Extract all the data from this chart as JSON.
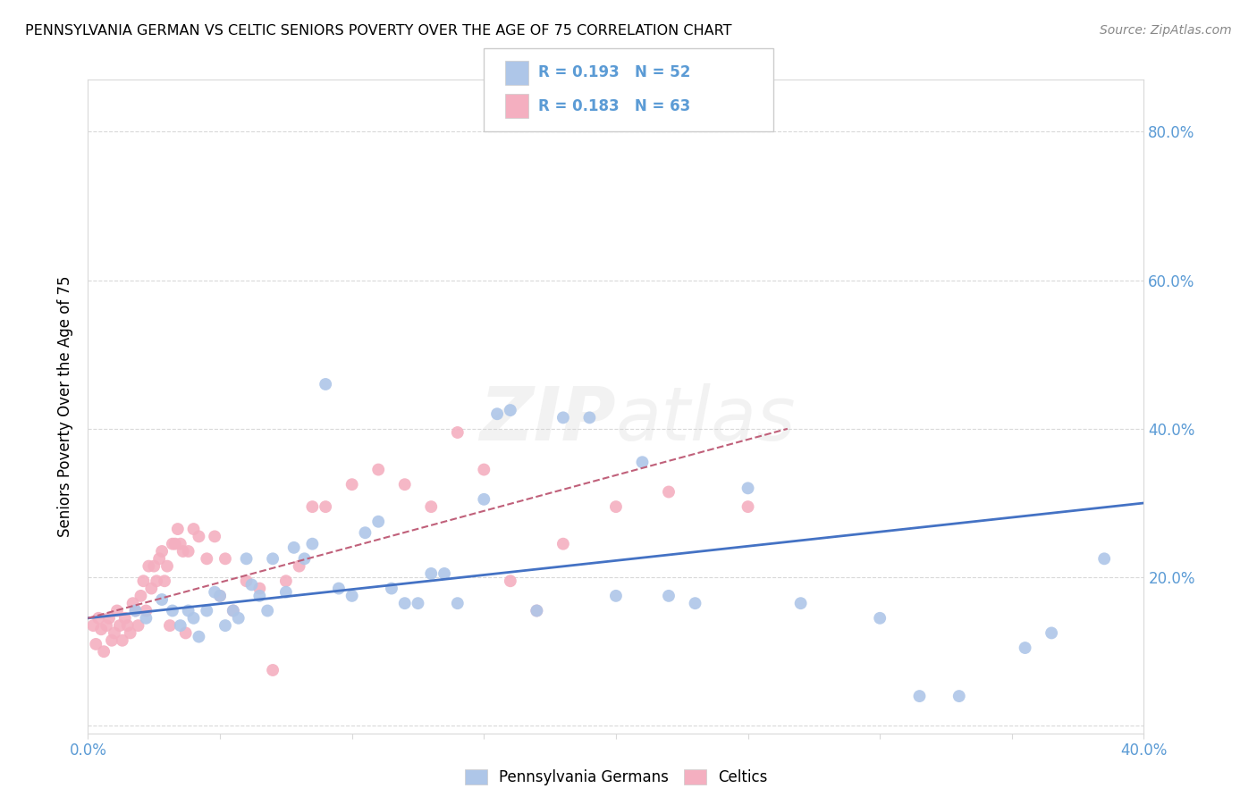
{
  "title": "PENNSYLVANIA GERMAN VS CELTIC SENIORS POVERTY OVER THE AGE OF 75 CORRELATION CHART",
  "source": "Source: ZipAtlas.com",
  "ylabel": "Seniors Poverty Over the Age of 75",
  "xlim": [
    0.0,
    0.4
  ],
  "ylim": [
    -0.01,
    0.87
  ],
  "blue_color": "#aec6e8",
  "pink_color": "#f4afc0",
  "line_blue": "#4472c4",
  "line_pink": "#c0607a",
  "tick_color": "#5b9bd5",
  "grid_color": "#d9d9d9",
  "axis_color": "#d9d9d9",
  "bg_color": "#ffffff",
  "label1": "Pennsylvania Germans",
  "label2": "Celtics",
  "blue_points_x": [
    0.018,
    0.022,
    0.028,
    0.032,
    0.035,
    0.038,
    0.04,
    0.042,
    0.045,
    0.048,
    0.05,
    0.052,
    0.055,
    0.057,
    0.06,
    0.062,
    0.065,
    0.068,
    0.07,
    0.075,
    0.078,
    0.082,
    0.085,
    0.09,
    0.095,
    0.1,
    0.105,
    0.11,
    0.115,
    0.12,
    0.125,
    0.13,
    0.135,
    0.14,
    0.15,
    0.155,
    0.16,
    0.17,
    0.18,
    0.19,
    0.2,
    0.21,
    0.22,
    0.23,
    0.25,
    0.27,
    0.3,
    0.315,
    0.33,
    0.355,
    0.365,
    0.385
  ],
  "blue_points_y": [
    0.155,
    0.145,
    0.17,
    0.155,
    0.135,
    0.155,
    0.145,
    0.12,
    0.155,
    0.18,
    0.175,
    0.135,
    0.155,
    0.145,
    0.225,
    0.19,
    0.175,
    0.155,
    0.225,
    0.18,
    0.24,
    0.225,
    0.245,
    0.46,
    0.185,
    0.175,
    0.26,
    0.275,
    0.185,
    0.165,
    0.165,
    0.205,
    0.205,
    0.165,
    0.305,
    0.42,
    0.425,
    0.155,
    0.415,
    0.415,
    0.175,
    0.355,
    0.175,
    0.165,
    0.32,
    0.165,
    0.145,
    0.04,
    0.04,
    0.105,
    0.125,
    0.225
  ],
  "pink_points_x": [
    0.002,
    0.003,
    0.004,
    0.005,
    0.006,
    0.007,
    0.008,
    0.009,
    0.01,
    0.011,
    0.012,
    0.013,
    0.014,
    0.015,
    0.016,
    0.017,
    0.018,
    0.019,
    0.02,
    0.021,
    0.022,
    0.023,
    0.024,
    0.025,
    0.026,
    0.027,
    0.028,
    0.029,
    0.03,
    0.031,
    0.032,
    0.033,
    0.034,
    0.035,
    0.036,
    0.037,
    0.038,
    0.04,
    0.042,
    0.045,
    0.048,
    0.05,
    0.052,
    0.055,
    0.06,
    0.065,
    0.07,
    0.075,
    0.08,
    0.085,
    0.09,
    0.1,
    0.11,
    0.12,
    0.13,
    0.14,
    0.15,
    0.16,
    0.17,
    0.18,
    0.2,
    0.22,
    0.25
  ],
  "pink_points_y": [
    0.135,
    0.11,
    0.145,
    0.13,
    0.1,
    0.135,
    0.145,
    0.115,
    0.125,
    0.155,
    0.135,
    0.115,
    0.145,
    0.135,
    0.125,
    0.165,
    0.155,
    0.135,
    0.175,
    0.195,
    0.155,
    0.215,
    0.185,
    0.215,
    0.195,
    0.225,
    0.235,
    0.195,
    0.215,
    0.135,
    0.245,
    0.245,
    0.265,
    0.245,
    0.235,
    0.125,
    0.235,
    0.265,
    0.255,
    0.225,
    0.255,
    0.175,
    0.225,
    0.155,
    0.195,
    0.185,
    0.075,
    0.195,
    0.215,
    0.295,
    0.295,
    0.325,
    0.345,
    0.325,
    0.295,
    0.395,
    0.345,
    0.195,
    0.155,
    0.245,
    0.295,
    0.315,
    0.295
  ],
  "blue_trend_x": [
    0.0,
    0.4
  ],
  "blue_trend_y": [
    0.145,
    0.3
  ],
  "pink_trend_x": [
    0.0,
    0.265
  ],
  "pink_trend_y": [
    0.145,
    0.4
  ],
  "ytick_positions": [
    0.0,
    0.2,
    0.4,
    0.6,
    0.8
  ],
  "ytick_labels": [
    "",
    "20.0%",
    "40.0%",
    "60.0%",
    "80.0%"
  ],
  "xtick_positions": [
    0.0,
    0.05,
    0.1,
    0.15,
    0.2,
    0.25,
    0.3,
    0.35,
    0.4
  ],
  "xtick_labels": [
    "0.0%",
    "",
    "",
    "",
    "",
    "",
    "",
    "",
    "40.0%"
  ]
}
